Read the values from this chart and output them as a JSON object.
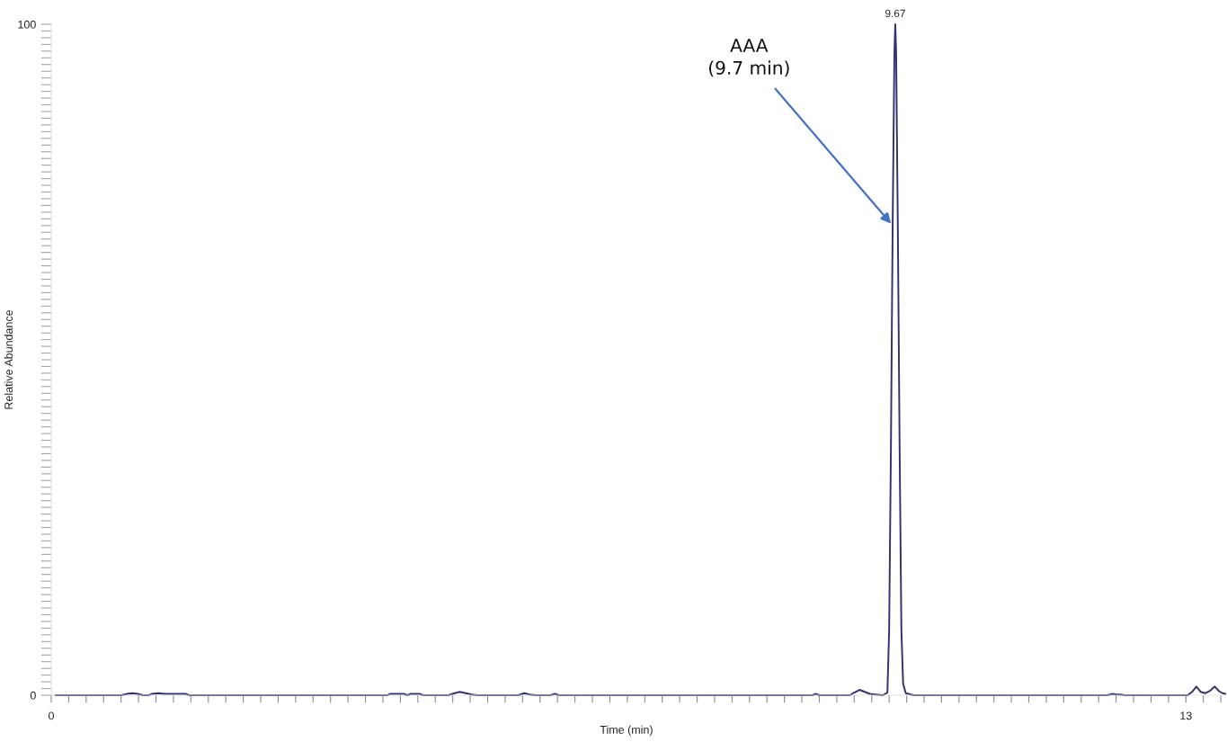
{
  "chart_data": {
    "type": "line",
    "xlabel": "Time (min)",
    "ylabel": "Relative Abundance",
    "series": [
      {
        "color": "#35316e",
        "x": [
          0.05,
          0.8,
          0.87,
          0.93,
          0.99,
          1.05,
          1.12,
          1.15,
          1.23,
          1.3,
          1.54,
          1.58,
          3.85,
          3.88,
          4.04,
          4.08,
          4.12,
          4.22,
          4.26,
          4.55,
          4.62,
          4.68,
          4.75,
          4.82,
          4.88,
          5.35,
          5.42,
          5.48,
          5.55,
          5.72,
          5.77,
          5.82,
          8.72,
          8.76,
          8.8,
          9.15,
          9.2,
          9.26,
          9.32,
          9.38,
          9.45,
          9.53,
          9.58,
          9.6,
          9.62,
          9.64,
          9.66,
          9.67,
          9.68,
          9.7,
          9.72,
          9.74,
          9.76,
          9.79,
          9.88,
          12.1,
          12.16,
          12.2,
          12.25,
          12.3,
          13.02,
          13.07,
          13.12,
          13.17,
          13.22,
          13.28,
          13.33,
          13.38,
          13.42,
          13.45
        ],
        "values": [
          0,
          0,
          0.2,
          0.3,
          0.2,
          0,
          0,
          0.2,
          0.3,
          0.2,
          0.2,
          0,
          0,
          0.2,
          0.2,
          0,
          0.2,
          0.2,
          0,
          0,
          0.3,
          0.5,
          0.3,
          0.1,
          0,
          0,
          0.3,
          0.1,
          0,
          0,
          0.2,
          0,
          0,
          0.2,
          0,
          0,
          0.4,
          0.8,
          0.5,
          0.2,
          0.1,
          0,
          0.4,
          9.8,
          36.6,
          70,
          95.6,
          100,
          95.6,
          68.8,
          36.6,
          9.8,
          1.7,
          0.3,
          0,
          0,
          0.2,
          0.1,
          0.1,
          0,
          0,
          0.5,
          1.3,
          0.5,
          0.3,
          0.7,
          1.3,
          0.6,
          0.3,
          0.2
        ]
      }
    ],
    "xlim": [
      0,
      13.45
    ],
    "ylim": [
      0,
      100
    ],
    "xticks": [
      0,
      {
        "value": 0.2,
        "label": null
      },
      {
        "value": 0.4,
        "label": null
      },
      {
        "value": 0.6,
        "label": null
      },
      {
        "value": 0.8,
        "label": null
      },
      {
        "value": 1,
        "label": null
      },
      {
        "value": 1.2,
        "label": null
      },
      {
        "value": 1.4,
        "label": null
      },
      {
        "value": 1.6,
        "label": null
      },
      {
        "value": 1.8,
        "label": null
      },
      {
        "value": 2,
        "label": null
      },
      {
        "value": 2.2,
        "label": null
      },
      {
        "value": 2.4,
        "label": null
      },
      {
        "value": 2.6,
        "label": null
      },
      {
        "value": 2.8,
        "label": null
      },
      {
        "value": 3,
        "label": null
      },
      {
        "value": 3.2,
        "label": null
      },
      {
        "value": 3.4,
        "label": null
      },
      {
        "value": 3.6,
        "label": null
      },
      {
        "value": 3.8,
        "label": null
      },
      {
        "value": 4,
        "label": null
      },
      {
        "value": 4.2,
        "label": null
      },
      {
        "value": 4.4,
        "label": null
      },
      {
        "value": 4.6,
        "label": null
      },
      {
        "value": 4.8,
        "label": null
      },
      {
        "value": 5,
        "label": null
      },
      {
        "value": 5.2,
        "label": null
      },
      {
        "value": 5.4,
        "label": null
      },
      {
        "value": 5.6,
        "label": null
      },
      {
        "value": 5.8,
        "label": null
      },
      {
        "value": 6,
        "label": null
      },
      {
        "value": 6.2,
        "label": null
      },
      {
        "value": 6.4,
        "label": null
      },
      {
        "value": 6.6,
        "label": null
      },
      {
        "value": 6.8,
        "label": null
      },
      {
        "value": 7,
        "label": null
      },
      {
        "value": 7.2,
        "label": null
      },
      {
        "value": 7.4,
        "label": null
      },
      {
        "value": 7.6,
        "label": null
      },
      {
        "value": 7.8,
        "label": null
      },
      {
        "value": 8,
        "label": null
      },
      {
        "value": 8.2,
        "label": null
      },
      {
        "value": 8.4,
        "label": null
      },
      {
        "value": 8.6,
        "label": null
      },
      {
        "value": 8.8,
        "label": null
      },
      {
        "value": 9,
        "label": null
      },
      {
        "value": 9.2,
        "label": null
      },
      {
        "value": 9.4,
        "label": null
      },
      {
        "value": 9.6,
        "label": null
      },
      {
        "value": 9.8,
        "label": null
      },
      {
        "value": 10,
        "label": null
      },
      {
        "value": 10.2,
        "label": null
      },
      {
        "value": 10.4,
        "label": null
      },
      {
        "value": 10.6,
        "label": null
      },
      {
        "value": 10.8,
        "label": null
      },
      {
        "value": 11,
        "label": null
      },
      {
        "value": 11.2,
        "label": null
      },
      {
        "value": 11.4,
        "label": null
      },
      {
        "value": 11.6,
        "label": null
      },
      {
        "value": 11.8,
        "label": null
      },
      {
        "value": 12,
        "label": null
      },
      {
        "value": 12.2,
        "label": null
      },
      {
        "value": 12.4,
        "label": null
      },
      {
        "value": 12.6,
        "label": null
      },
      {
        "value": 12.8,
        "label": null
      },
      13,
      {
        "value": 13.2,
        "label": null
      },
      {
        "value": 13.4,
        "label": null
      }
    ],
    "yticks": [
      0,
      {
        "value": 1,
        "label": null
      },
      {
        "value": 2,
        "label": null
      },
      {
        "value": 3,
        "label": null
      },
      {
        "value": 4,
        "label": null
      },
      {
        "value": 5,
        "label": null
      },
      {
        "value": 6,
        "label": null
      },
      {
        "value": 7,
        "label": null
      },
      {
        "value": 8,
        "label": null
      },
      {
        "value": 9,
        "label": null
      },
      {
        "value": 10,
        "label": null
      },
      {
        "value": 11,
        "label": null
      },
      {
        "value": 12,
        "label": null
      },
      {
        "value": 13,
        "label": null
      },
      {
        "value": 14,
        "label": null
      },
      {
        "value": 15,
        "label": null
      },
      {
        "value": 16,
        "label": null
      },
      {
        "value": 17,
        "label": null
      },
      {
        "value": 18,
        "label": null
      },
      {
        "value": 19,
        "label": null
      },
      {
        "value": 20,
        "label": null
      },
      {
        "value": 21,
        "label": null
      },
      {
        "value": 22,
        "label": null
      },
      {
        "value": 23,
        "label": null
      },
      {
        "value": 24,
        "label": null
      },
      {
        "value": 25,
        "label": null
      },
      {
        "value": 26,
        "label": null
      },
      {
        "value": 27,
        "label": null
      },
      {
        "value": 28,
        "label": null
      },
      {
        "value": 29,
        "label": null
      },
      {
        "value": 30,
        "label": null
      },
      {
        "value": 31,
        "label": null
      },
      {
        "value": 32,
        "label": null
      },
      {
        "value": 33,
        "label": null
      },
      {
        "value": 34,
        "label": null
      },
      {
        "value": 35,
        "label": null
      },
      {
        "value": 36,
        "label": null
      },
      {
        "value": 37,
        "label": null
      },
      {
        "value": 38,
        "label": null
      },
      {
        "value": 39,
        "label": null
      },
      {
        "value": 40,
        "label": null
      },
      {
        "value": 41,
        "label": null
      },
      {
        "value": 42,
        "label": null
      },
      {
        "value": 43,
        "label": null
      },
      {
        "value": 44,
        "label": null
      },
      {
        "value": 45,
        "label": null
      },
      {
        "value": 46,
        "label": null
      },
      {
        "value": 47,
        "label": null
      },
      {
        "value": 48,
        "label": null
      },
      {
        "value": 49,
        "label": null
      },
      {
        "value": 50,
        "label": null
      },
      {
        "value": 51,
        "label": null
      },
      {
        "value": 52,
        "label": null
      },
      {
        "value": 53,
        "label": null
      },
      {
        "value": 54,
        "label": null
      },
      {
        "value": 55,
        "label": null
      },
      {
        "value": 56,
        "label": null
      },
      {
        "value": 57,
        "label": null
      },
      {
        "value": 58,
        "label": null
      },
      {
        "value": 59,
        "label": null
      },
      {
        "value": 60,
        "label": null
      },
      {
        "value": 61,
        "label": null
      },
      {
        "value": 62,
        "label": null
      },
      {
        "value": 63,
        "label": null
      },
      {
        "value": 64,
        "label": null
      },
      {
        "value": 65,
        "label": null
      },
      {
        "value": 66,
        "label": null
      },
      {
        "value": 67,
        "label": null
      },
      {
        "value": 68,
        "label": null
      },
      {
        "value": 69,
        "label": null
      },
      {
        "value": 70,
        "label": null
      },
      {
        "value": 71,
        "label": null
      },
      {
        "value": 72,
        "label": null
      },
      {
        "value": 73,
        "label": null
      },
      {
        "value": 74,
        "label": null
      },
      {
        "value": 75,
        "label": null
      },
      {
        "value": 76,
        "label": null
      },
      {
        "value": 77,
        "label": null
      },
      {
        "value": 78,
        "label": null
      },
      {
        "value": 79,
        "label": null
      },
      {
        "value": 80,
        "label": null
      },
      {
        "value": 81,
        "label": null
      },
      {
        "value": 82,
        "label": null
      },
      {
        "value": 83,
        "label": null
      },
      {
        "value": 84,
        "label": null
      },
      {
        "value": 85,
        "label": null
      },
      {
        "value": 86,
        "label": null
      },
      {
        "value": 87,
        "label": null
      },
      {
        "value": 88,
        "label": null
      },
      {
        "value": 89,
        "label": null
      },
      {
        "value": 90,
        "label": null
      },
      {
        "value": 91,
        "label": null
      },
      {
        "value": 92,
        "label": null
      },
      {
        "value": 93,
        "label": null
      },
      {
        "value": 94,
        "label": null
      },
      {
        "value": 95,
        "label": null
      },
      {
        "value": 96,
        "label": null
      },
      {
        "value": 97,
        "label": null
      },
      {
        "value": 98,
        "label": null
      },
      {
        "value": 99,
        "label": null
      },
      100
    ],
    "annotations": [
      {
        "text": "9.67",
        "x": 9.67,
        "y": 100
      },
      {
        "text": "AAA\n(9.7 min)",
        "x": 9.64,
        "y": 70
      }
    ]
  }
}
